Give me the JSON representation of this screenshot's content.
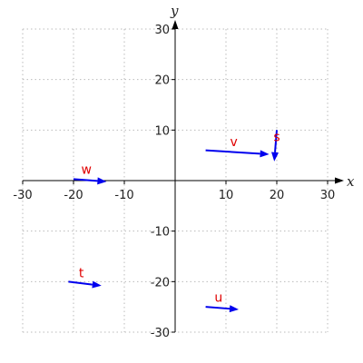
{
  "chart_data": {
    "type": "vector-field",
    "title": "",
    "xlabel": "x",
    "ylabel": "y",
    "xlim": [
      -30,
      30
    ],
    "ylim": [
      -30,
      30
    ],
    "x_ticks": [
      -30,
      -20,
      -10,
      10,
      20,
      30
    ],
    "y_ticks": [
      -30,
      -20,
      -10,
      10,
      20,
      30
    ],
    "grid": true,
    "grid_style": "dotted",
    "vector_color": "#0000ee",
    "label_color": "#e00000",
    "vectors": [
      {
        "name": "w",
        "from": [
          -20,
          0.3
        ],
        "to": [
          -13.5,
          -0.2
        ]
      },
      {
        "name": "v",
        "from": [
          6,
          6
        ],
        "to": [
          18.5,
          5.2
        ]
      },
      {
        "name": "s",
        "from": [
          20,
          10
        ],
        "to": [
          19.5,
          3.8
        ]
      },
      {
        "name": "t",
        "from": [
          -21,
          -20
        ],
        "to": [
          -14.5,
          -20.8
        ]
      },
      {
        "name": "u",
        "from": [
          6,
          -25
        ],
        "to": [
          12.5,
          -25.5
        ]
      }
    ]
  }
}
